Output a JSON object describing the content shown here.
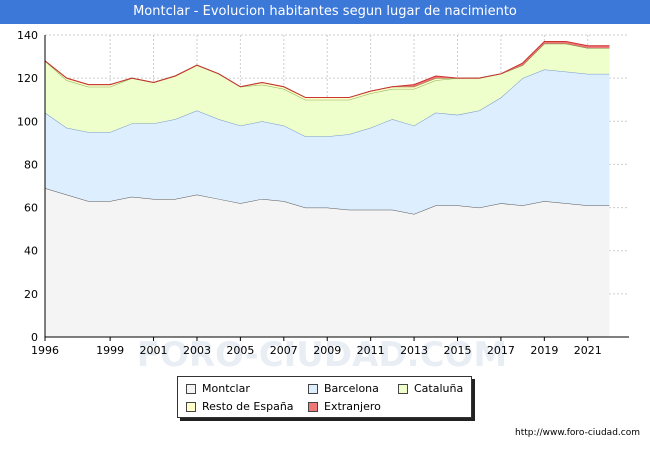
{
  "header": {
    "title": "Montclar - Evolucion habitantes segun lugar de nacimiento"
  },
  "footer": {
    "url": "http://www.foro-ciudad.com"
  },
  "watermark": "FORO-CIUDAD.COM",
  "chart_data": {
    "type": "area",
    "stacked": true,
    "title": "Montclar - Evolucion habitantes segun lugar de nacimiento",
    "xlabel": "",
    "ylabel": "",
    "x": [
      1996,
      1997,
      1998,
      1999,
      2000,
      2001,
      2002,
      2003,
      2004,
      2005,
      2006,
      2007,
      2008,
      2009,
      2010,
      2011,
      2012,
      2013,
      2014,
      2015,
      2016,
      2017,
      2018,
      2019,
      2020,
      2021,
      2022
    ],
    "xticks": [
      1996,
      1999,
      2001,
      2003,
      2005,
      2007,
      2009,
      2011,
      2013,
      2015,
      2017,
      2019,
      2021
    ],
    "xlim": [
      1996,
      2022.9
    ],
    "ylim": [
      0,
      140
    ],
    "yticks": [
      0,
      20,
      40,
      60,
      80,
      100,
      120,
      140
    ],
    "grid": true,
    "series": [
      {
        "name": "Montclar",
        "color": "#f4f4f4",
        "line": "#555555",
        "values": [
          69,
          66,
          63,
          63,
          65,
          64,
          64,
          66,
          64,
          62,
          64,
          63,
          60,
          60,
          59,
          59,
          59,
          57,
          61,
          61,
          60,
          62,
          61,
          63,
          62,
          61,
          61
        ]
      },
      {
        "name": "Barcelona",
        "color": "#ddeeff",
        "line": "#7799cc",
        "values": [
          35,
          31,
          32,
          32,
          34,
          35,
          37,
          39,
          37,
          36,
          36,
          35,
          33,
          33,
          35,
          38,
          42,
          41,
          43,
          42,
          45,
          49,
          59,
          61,
          61,
          61,
          61
        ]
      },
      {
        "name": "Cataluña",
        "color": "#eeffcc",
        "line": "#88aa55",
        "values": [
          24,
          22,
          21,
          21,
          21,
          19,
          20,
          21,
          21,
          18,
          17,
          17,
          17,
          17,
          16,
          16,
          14,
          17,
          15,
          17,
          15,
          11,
          6,
          12,
          13,
          12,
          12
        ]
      },
      {
        "name": "Resto de España",
        "color": "#ffffcc",
        "line": "#888844",
        "values": [
          0,
          1,
          1,
          1,
          0,
          0,
          0,
          0,
          0,
          0,
          1,
          1,
          1,
          1,
          1,
          1,
          1,
          1,
          1,
          0,
          0,
          0,
          0,
          0,
          0,
          0,
          0
        ]
      },
      {
        "name": "Extranjero",
        "color": "#ee7777",
        "line": "#cc3333",
        "values": [
          0,
          0,
          0,
          0,
          0,
          0,
          0,
          0,
          0,
          0,
          0,
          0,
          0,
          0,
          0,
          0,
          0,
          1,
          1,
          0,
          0,
          0,
          1,
          1,
          1,
          1,
          1
        ]
      }
    ]
  }
}
